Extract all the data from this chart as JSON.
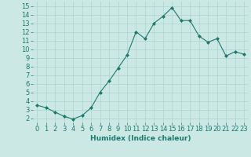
{
  "x": [
    0,
    1,
    2,
    3,
    4,
    5,
    6,
    7,
    8,
    9,
    10,
    11,
    12,
    13,
    14,
    15,
    16,
    17,
    18,
    19,
    20,
    21,
    22,
    23
  ],
  "y": [
    3.5,
    3.2,
    2.7,
    2.2,
    1.9,
    2.3,
    3.2,
    5.0,
    6.3,
    7.8,
    9.3,
    12.0,
    11.2,
    13.0,
    13.8,
    14.8,
    13.3,
    13.3,
    11.5,
    10.8,
    11.2,
    9.2,
    9.7,
    9.4
  ],
  "line_color": "#1a7a6e",
  "marker": "D",
  "markersize": 2.0,
  "linewidth": 0.8,
  "xlabel": "Humidex (Indice chaleur)",
  "xlim": [
    -0.5,
    23.5
  ],
  "ylim": [
    1.5,
    15.5
  ],
  "yticks": [
    2,
    3,
    4,
    5,
    6,
    7,
    8,
    9,
    10,
    11,
    12,
    13,
    14,
    15
  ],
  "xticks": [
    0,
    1,
    2,
    3,
    4,
    5,
    6,
    7,
    8,
    9,
    10,
    11,
    12,
    13,
    14,
    15,
    16,
    17,
    18,
    19,
    20,
    21,
    22,
    23
  ],
  "bg_color": "#cce8e4",
  "grid_color": "#b0d8d3",
  "tick_color": "#1a7a6e",
  "label_color": "#1a7a6e",
  "font_size": 6.0,
  "xlabel_fontsize": 6.5
}
